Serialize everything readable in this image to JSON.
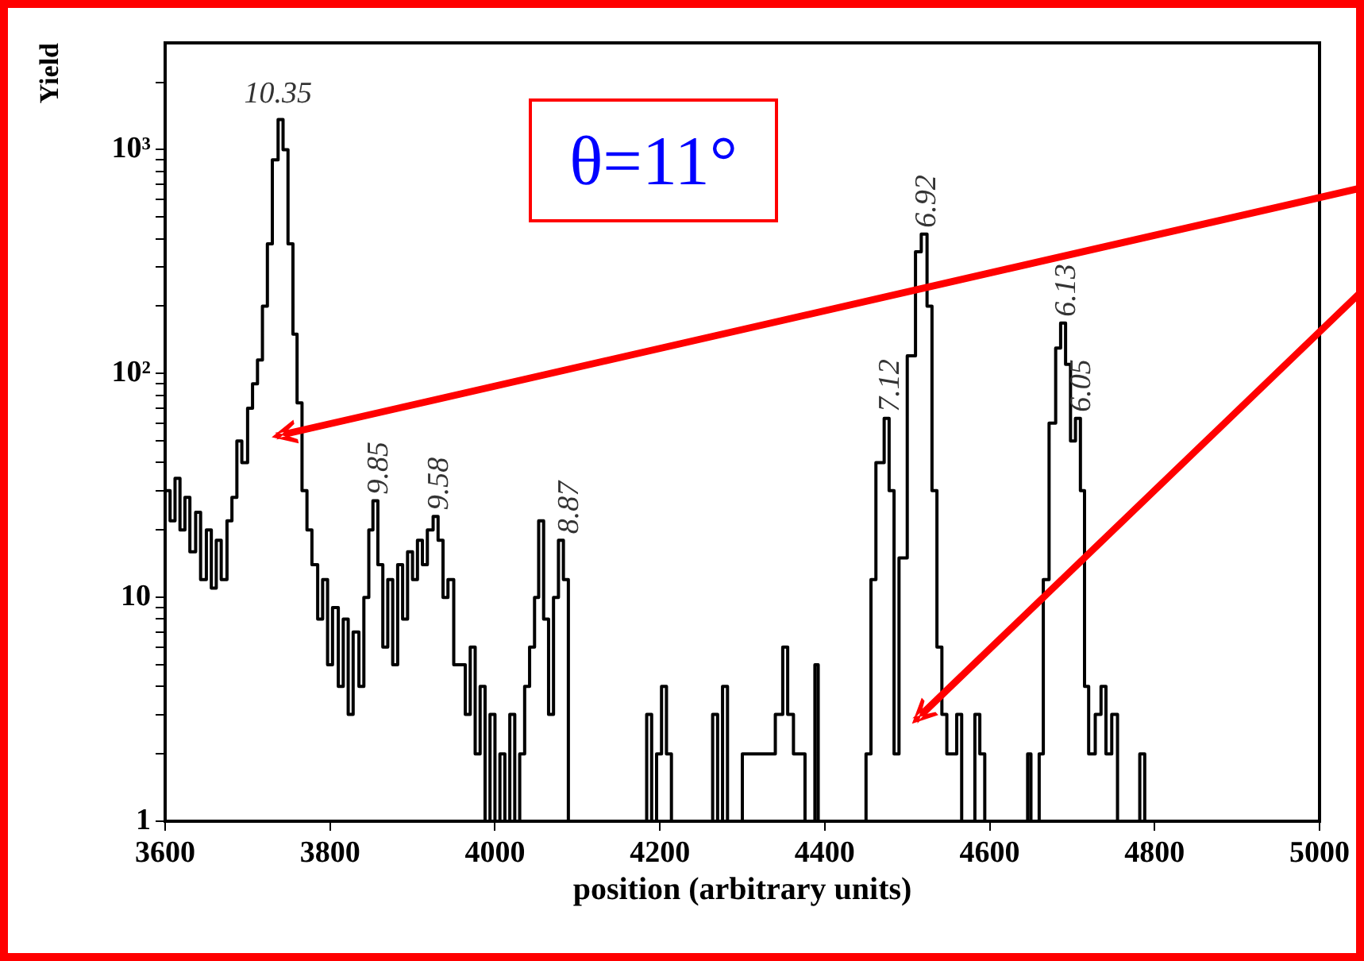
{
  "chart_data": {
    "type": "step",
    "xlabel": "position (arbitrary units)",
    "ylabel": "Yield",
    "x": [
      3600,
      3606,
      3612,
      3618,
      3624,
      3630,
      3637,
      3643,
      3650,
      3656,
      3662,
      3668,
      3675,
      3681,
      3687,
      3693,
      3700,
      3706,
      3712,
      3718,
      3724,
      3730,
      3737,
      3743,
      3749,
      3755,
      3760,
      3766,
      3772,
      3778,
      3785,
      3791,
      3797,
      3803,
      3810,
      3816,
      3822,
      3828,
      3835,
      3841,
      3847,
      3852,
      3858,
      3864,
      3870,
      3876,
      3882,
      3888,
      3894,
      3900,
      3906,
      3912,
      3918,
      3925,
      3931,
      3937,
      3943,
      3950,
      3958,
      3964,
      3970,
      3976,
      3982,
      3988,
      3994,
      4000,
      4006,
      4012,
      4018,
      4024,
      4030,
      4036,
      4042,
      4048,
      4053,
      4059,
      4065,
      4071,
      4077,
      4083,
      4089,
      4184,
      4190,
      4196,
      4202,
      4208,
      4214,
      4264,
      4270,
      4276,
      4282,
      4300,
      4340,
      4349,
      4355,
      4362,
      4376,
      4388,
      4392,
      4450,
      4456,
      4462,
      4472,
      4478,
      4484,
      4490,
      4500,
      4510,
      4517,
      4524,
      4530,
      4536,
      4542,
      4548,
      4560,
      4566,
      4582,
      4588,
      4594,
      4646,
      4650,
      4660,
      4665,
      4672,
      4680,
      4686,
      4692,
      4698,
      4704,
      4710,
      4715,
      4720,
      4728,
      4735,
      4741,
      4748,
      4755,
      4782,
      4788
    ],
    "values": [
      30,
      22,
      34,
      20,
      28,
      16,
      24,
      12,
      20,
      11,
      18,
      12,
      22,
      28,
      50,
      40,
      70,
      90,
      115,
      200,
      380,
      900,
      1365,
      1000,
      380,
      150,
      74,
      30,
      20,
      14,
      8,
      12,
      5,
      9,
      4,
      8,
      3,
      7,
      4,
      10,
      20,
      27,
      14,
      6,
      12,
      5,
      14,
      8,
      16,
      12,
      18,
      14,
      20,
      23,
      18,
      10,
      12,
      5,
      5,
      3,
      6,
      2,
      4,
      1,
      3,
      1,
      2,
      1,
      3,
      1,
      2,
      4,
      6,
      10,
      22,
      8,
      3,
      10,
      18,
      12,
      1,
      3,
      1,
      2,
      4,
      2,
      1,
      3,
      1,
      4,
      1,
      2,
      3,
      6,
      3,
      2,
      1,
      5,
      1,
      2,
      12,
      40,
      63,
      30,
      2,
      15,
      120,
      350,
      420,
      200,
      30,
      6,
      3,
      2,
      3,
      1,
      3,
      2,
      1,
      2,
      1,
      2,
      12,
      60,
      130,
      168,
      110,
      50,
      63,
      30,
      4,
      2,
      3,
      4,
      2,
      3,
      1,
      2,
      1
    ],
    "color": "#000000",
    "log": "y",
    "xlim": [
      3600,
      5000
    ],
    "ylim": [
      1,
      3000
    ],
    "xticks": [
      3600,
      3800,
      4000,
      4200,
      4400,
      4600,
      4800,
      5000
    ],
    "yticks": [
      1,
      {
        "value": 2,
        "label": null
      },
      {
        "value": 3,
        "label": null
      },
      {
        "value": 4,
        "label": null
      },
      {
        "value": 5,
        "label": null
      },
      {
        "value": 6,
        "label": null
      },
      {
        "value": 7,
        "label": null
      },
      {
        "value": 8,
        "label": null
      },
      {
        "value": 9,
        "label": null
      },
      10,
      {
        "value": 20,
        "label": null
      },
      {
        "value": 30,
        "label": null
      },
      {
        "value": 40,
        "label": null
      },
      {
        "value": 50,
        "label": null
      },
      {
        "value": 60,
        "label": null
      },
      {
        "value": 70,
        "label": null
      },
      {
        "value": 80,
        "label": null
      },
      {
        "value": 90,
        "label": null
      },
      {
        "value": 100,
        "label": "10²"
      },
      {
        "value": 200,
        "label": null
      },
      {
        "value": 300,
        "label": null
      },
      {
        "value": 400,
        "label": null
      },
      {
        "value": 500,
        "label": null
      },
      {
        "value": 600,
        "label": null
      },
      {
        "value": 700,
        "label": null
      },
      {
        "value": 800,
        "label": null
      },
      {
        "value": 900,
        "label": null
      },
      {
        "value": 1000,
        "label": "10³"
      },
      {
        "value": 2000,
        "label": null
      }
    ],
    "grid": false,
    "legend": false,
    "annotations": [
      {
        "text": "10.35",
        "x": 3737,
        "y": 1365
      },
      {
        "text": "9.85",
        "x": 3852,
        "y": 27
      },
      {
        "text": "9.58",
        "x": 3925,
        "y": 23
      },
      {
        "text": "8.87",
        "x": 4083,
        "y": 18
      },
      {
        "text": "7.12",
        "x": 4472,
        "y": 63
      },
      {
        "text": "6.92",
        "x": 4517,
        "y": 420
      },
      {
        "text": "6.13",
        "x": 4686,
        "y": 168
      },
      {
        "text": "6.05",
        "x": 4704,
        "y": 63
      },
      "θ=11°"
    ]
  }
}
